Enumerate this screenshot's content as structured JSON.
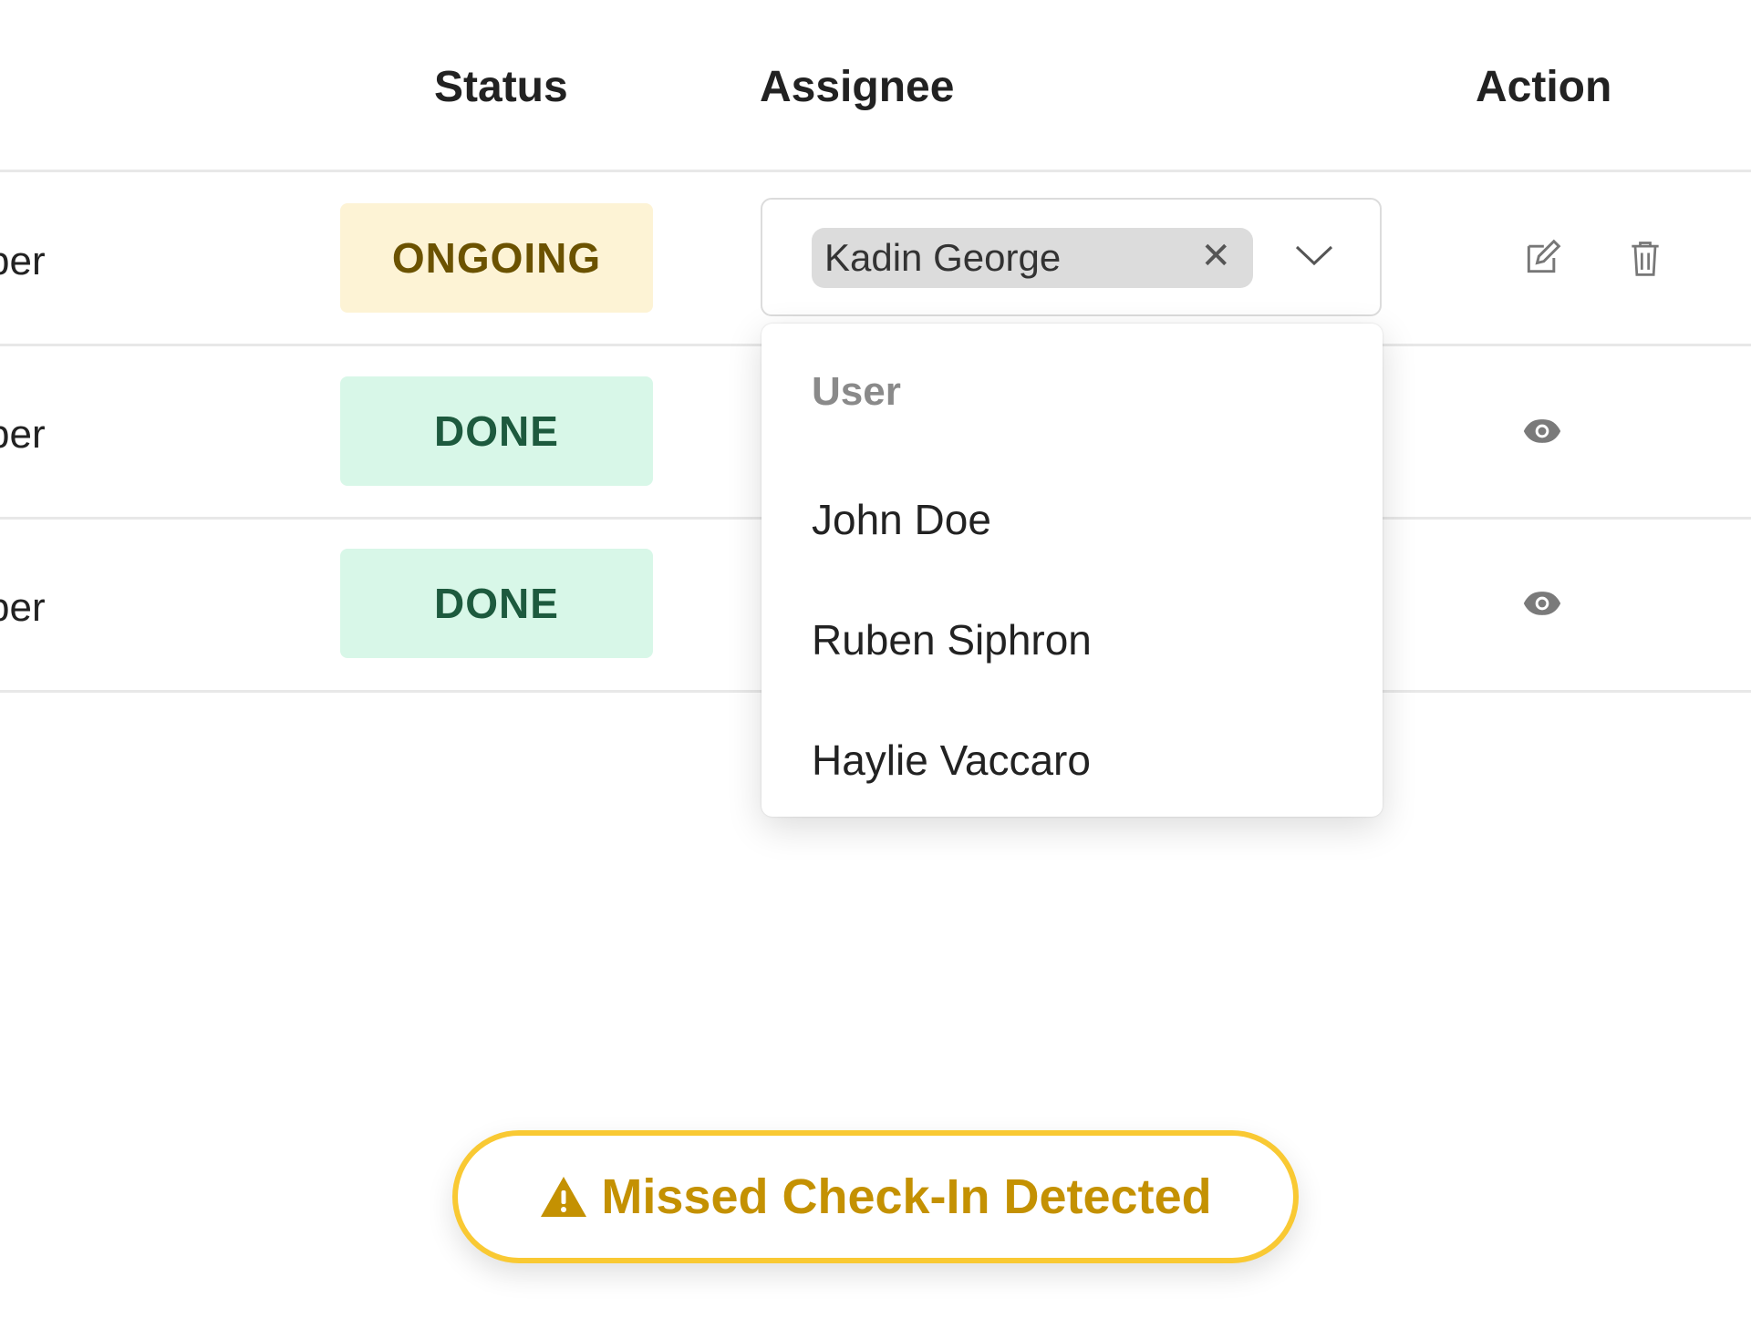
{
  "table": {
    "columns": {
      "status": "Status",
      "assignee": "Assignee",
      "action": "Action"
    },
    "rows": [
      {
        "role_fragment": "per",
        "status": "ONGOING",
        "actions": [
          "edit-icon",
          "trash-icon"
        ]
      },
      {
        "role_fragment": "per",
        "status": "DONE",
        "actions": [
          "eye-icon"
        ]
      },
      {
        "role_fragment": "per",
        "status": "DONE",
        "actions": [
          "eye-icon"
        ]
      }
    ]
  },
  "assignee_select": {
    "selected": "Kadin George",
    "options_group": "User",
    "options": [
      "John Doe",
      "Ruben Siphron",
      "Haylie Vaccaro"
    ]
  },
  "toast": {
    "icon": "warning-icon",
    "message": "Missed Check-In Detected"
  },
  "colors": {
    "ongoing_bg": "#fdf3d5",
    "ongoing_text": "#6b5200",
    "done_bg": "#d8f7e8",
    "done_text": "#1d5a3e",
    "toast_border": "#f9c933",
    "toast_text": "#c49102"
  }
}
